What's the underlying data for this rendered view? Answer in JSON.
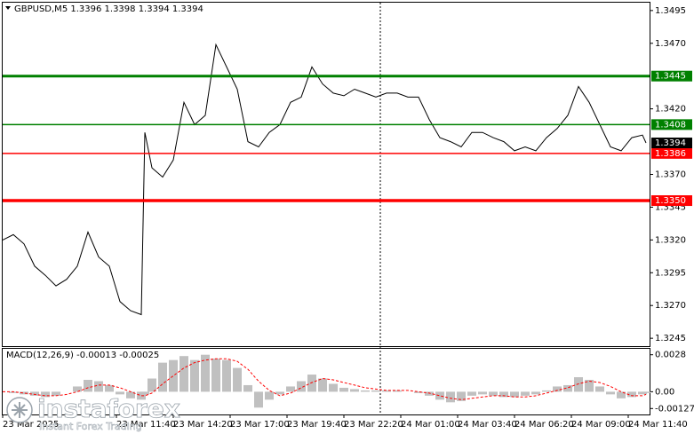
{
  "chart_data": [
    {
      "type": "line",
      "title": "GBPUSD,M5 1.3396 1.3398 1.3394 1.3394",
      "x": [
        0,
        6,
        12,
        18,
        24,
        30,
        36,
        42,
        48,
        54,
        60,
        66,
        72,
        78,
        80,
        84,
        90,
        96,
        102,
        108,
        114,
        120,
        126,
        132,
        138,
        144,
        150,
        156,
        162,
        168,
        174,
        180,
        186,
        192,
        198,
        204,
        210,
        216,
        222,
        228,
        234,
        240,
        246,
        252,
        258,
        264,
        270,
        276,
        282,
        288,
        294,
        300,
        306,
        312,
        318,
        324,
        330,
        336,
        342,
        348,
        354,
        360,
        362
      ],
      "series": [
        {
          "color": "#000000",
          "values": [
            1.332,
            1.3324,
            1.3317,
            1.33,
            1.3293,
            1.3285,
            1.329,
            1.33,
            1.3326,
            1.3307,
            1.33,
            1.3273,
            1.3266,
            1.3263,
            1.3402,
            1.3375,
            1.3368,
            1.3381,
            1.3425,
            1.3408,
            1.3415,
            1.3469,
            1.3452,
            1.3435,
            1.3395,
            1.3391,
            1.3402,
            1.3408,
            1.3425,
            1.3429,
            1.3452,
            1.3439,
            1.3432,
            1.343,
            1.3435,
            1.3432,
            1.3429,
            1.3432,
            1.3432,
            1.3429,
            1.3429,
            1.3412,
            1.3398,
            1.3395,
            1.3391,
            1.3402,
            1.3402,
            1.3398,
            1.3395,
            1.3388,
            1.3391,
            1.3388,
            1.3398,
            1.3405,
            1.3415,
            1.3437,
            1.3425,
            1.3408,
            1.3391,
            1.3388,
            1.3398,
            1.34,
            1.3394
          ]
        }
      ],
      "xlim": [
        0,
        364
      ],
      "xticks": [
        {
          "value": 0,
          "label": "23 Mar 2025"
        },
        {
          "value": 64,
          "label": "23 Mar 11:40"
        },
        {
          "value": 96,
          "label": "23 Mar 14:20"
        },
        {
          "value": 128,
          "label": "23 Mar 17:00"
        },
        {
          "value": 160,
          "label": "23 Mar 19:40"
        },
        {
          "value": 192,
          "label": "23 Mar 22:20"
        },
        {
          "value": 224,
          "label": "24 Mar 01:00"
        },
        {
          "value": 256,
          "label": "24 Mar 03:40"
        },
        {
          "value": 288,
          "label": "24 Mar 06:20"
        },
        {
          "value": 320,
          "label": "24 Mar 09:00"
        },
        {
          "value": 352,
          "label": "24 Mar 11:40"
        }
      ],
      "ylim": [
        1.3239,
        1.3501
      ],
      "yticks": [
        1.3495,
        {
          "value": 1.347,
          "label": "1.3470"
        },
        {
          "value": 1.342,
          "label": "1.3420"
        },
        {
          "value": 1.337,
          "label": "1.3370"
        },
        1.3345,
        {
          "value": 1.332,
          "label": "1.3320"
        },
        1.3295,
        {
          "value": 1.327,
          "label": "1.3270"
        },
        1.3245
      ],
      "levels": [
        {
          "value": 1.3445,
          "label": "1.3445",
          "color": "#008000",
          "width": 3
        },
        {
          "value": 1.3408,
          "label": "1.3408",
          "color": "#008000",
          "width": 1.5
        },
        {
          "value": 1.3386,
          "label": "1.3386",
          "color": "#ff0000",
          "width": 1.5
        },
        {
          "value": 1.335,
          "label": "1.3350",
          "color": "#ff0000",
          "width": 3.5
        }
      ],
      "current_price": 1.3394
    },
    {
      "type": "macd",
      "title": "MACD(12,26,9) -0.00013 -0.00025",
      "x": [
        0,
        6,
        12,
        18,
        24,
        30,
        36,
        42,
        48,
        54,
        60,
        66,
        72,
        78,
        80,
        84,
        90,
        96,
        102,
        108,
        114,
        120,
        126,
        132,
        138,
        144,
        150,
        156,
        162,
        168,
        174,
        180,
        186,
        192,
        198,
        204,
        210,
        216,
        222,
        228,
        234,
        240,
        246,
        252,
        258,
        264,
        270,
        276,
        282,
        288,
        294,
        300,
        306,
        312,
        318,
        324,
        330,
        336,
        342,
        348,
        354,
        360,
        362
      ],
      "xlim": [
        0,
        364
      ],
      "series": [
        {
          "kind": "histogram",
          "color": "#c0c0c0",
          "values": [
            0,
            -0.0001,
            -0.0002,
            -0.0003,
            -0.0004,
            -0.0003,
            0,
            0.0004,
            0.0009,
            0.0008,
            0.0005,
            -0.0002,
            -0.0005,
            -0.0006,
            -0.0002,
            0.001,
            0.0022,
            0.0024,
            0.0027,
            0.0024,
            0.0028,
            0.0025,
            0.0024,
            0.0018,
            0.0005,
            -0.0012,
            -0.0006,
            -0.0002,
            0.0004,
            0.0008,
            0.0013,
            0.001,
            0.0006,
            0.0003,
            0.0002,
            0.0001,
            0.0001,
            0.0001,
            0.0001,
            0,
            -0.0001,
            -0.0003,
            -0.0006,
            -0.0008,
            -0.0007,
            -0.0003,
            -0.0002,
            -0.0003,
            -0.0004,
            -0.0004,
            -0.0003,
            -0.0002,
            0.0001,
            0.0004,
            0.0005,
            0.0011,
            0.0009,
            0.0004,
            -0.0002,
            -0.0005,
            -0.0004,
            -0.0002,
            -0.0001
          ]
        },
        {
          "kind": "dashed",
          "color": "#ff0000",
          "values": [
            0,
            0,
            -0.0001,
            -0.0002,
            -0.0003,
            -0.0003,
            -0.0002,
            0,
            0.0003,
            0.0005,
            0.0005,
            0.0003,
            0,
            -0.0003,
            -0.0003,
            -0.0001,
            0.0006,
            0.0012,
            0.0018,
            0.0022,
            0.0024,
            0.0025,
            0.0025,
            0.0023,
            0.0017,
            0.0008,
            0.0001,
            -0.0003,
            -0.0001,
            0.0003,
            0.0007,
            0.001,
            0.0009,
            0.0007,
            0.0005,
            0.0003,
            0.0002,
            0.0001,
            0.0001,
            0.0001,
            0,
            -0.0001,
            -0.0003,
            -0.0005,
            -0.0006,
            -0.0005,
            -0.0004,
            -0.0003,
            -0.0003,
            -0.0004,
            -0.0004,
            -0.0003,
            -0.0001,
            0.0001,
            0.0003,
            0.0006,
            0.0008,
            0.0007,
            0.0004,
            0,
            -0.0003,
            -0.0003,
            -0.0002
          ]
        }
      ],
      "ylim": [
        -0.00172,
        0.00325
      ],
      "yticks": [
        0.0028,
        {
          "value": 0,
          "label": "0.00"
        },
        -0.00127
      ]
    }
  ],
  "watermark": {
    "brand": "instaforex",
    "tagline": "Instant Forex Trading"
  }
}
